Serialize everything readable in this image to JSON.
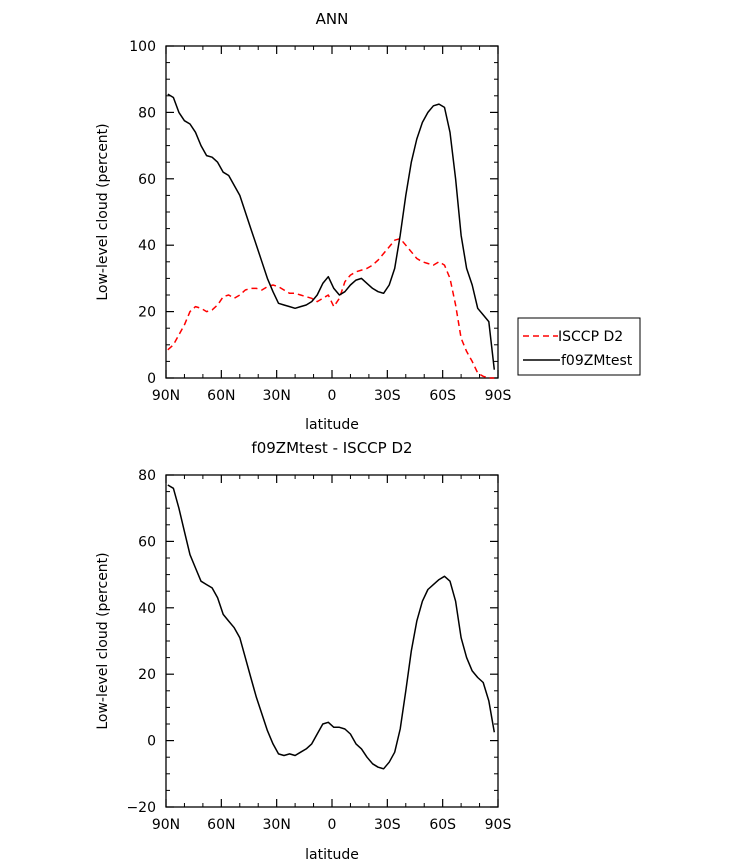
{
  "chart_data": [
    {
      "type": "line",
      "title": "ANN",
      "xlabel": "latitude",
      "ylabel": "Low-level cloud (percent)",
      "x_ticks": [
        "90N",
        "60N",
        "30N",
        "0",
        "30S",
        "60S",
        "90S"
      ],
      "x_tick_values": [
        -90,
        -60,
        -30,
        0,
        30,
        60,
        90
      ],
      "xlim": [
        -90,
        90
      ],
      "ylim": [
        0,
        100
      ],
      "y_ticks": [
        0,
        20,
        40,
        60,
        80,
        100
      ],
      "legend_position": "right",
      "series": [
        {
          "name": "ISCCP D2",
          "color": "#ff0000",
          "style": "dashed",
          "x": [
            -89,
            -86,
            -83,
            -80,
            -77,
            -74,
            -71,
            -68,
            -65,
            -62,
            -59,
            -56,
            -53,
            -50,
            -47,
            -44,
            -41,
            -38,
            -35,
            -32,
            -29,
            -26,
            -23,
            -20,
            -17,
            -14,
            -11,
            -8,
            -5,
            -2,
            1,
            4,
            7,
            10,
            13,
            16,
            19,
            22,
            25,
            28,
            31,
            34,
            37,
            40,
            43,
            46,
            49,
            52,
            55,
            58,
            61,
            64,
            67,
            70,
            73,
            76,
            79,
            82,
            85,
            88
          ],
          "y": [
            8.5,
            10,
            13,
            16,
            20,
            21.5,
            21,
            20,
            20.5,
            22,
            24.5,
            25,
            24,
            25,
            26.5,
            27,
            27,
            26.5,
            27.5,
            28,
            27.5,
            26.5,
            25.5,
            25.5,
            25,
            24.5,
            24,
            23,
            24,
            25,
            21.5,
            24,
            29,
            31,
            32,
            32.5,
            33,
            34,
            35.5,
            37.5,
            39.5,
            41.5,
            42,
            40,
            38,
            36,
            35,
            34.5,
            34,
            35,
            34,
            30,
            22,
            12,
            8,
            5,
            1.5,
            0.5,
            0,
            0
          ]
        },
        {
          "name": "f09ZMtest",
          "color": "#000000",
          "style": "solid",
          "x": [
            -89,
            -86,
            -83,
            -80,
            -77,
            -74,
            -71,
            -68,
            -65,
            -62,
            -59,
            -56,
            -53,
            -50,
            -47,
            -44,
            -41,
            -38,
            -35,
            -32,
            -29,
            -26,
            -23,
            -20,
            -17,
            -14,
            -11,
            -8,
            -5,
            -2,
            1,
            4,
            7,
            10,
            13,
            16,
            19,
            22,
            25,
            28,
            31,
            34,
            37,
            40,
            43,
            46,
            49,
            52,
            55,
            58,
            61,
            64,
            67,
            70,
            73,
            76,
            79,
            82,
            85,
            88
          ],
          "y": [
            85.5,
            84.5,
            80,
            77.5,
            76.5,
            74,
            70,
            67,
            66.5,
            65,
            62,
            61,
            58,
            55,
            50,
            45,
            40,
            35,
            30,
            26,
            22.5,
            22,
            21.5,
            21,
            21.5,
            22,
            23,
            25,
            28.5,
            30.5,
            27,
            25,
            26,
            28,
            29.5,
            30,
            28.5,
            27,
            26,
            25.5,
            28,
            33,
            43,
            55,
            65,
            72,
            77,
            80,
            82,
            82.5,
            81.5,
            74,
            60,
            43,
            33,
            28,
            21,
            19,
            17,
            2.5
          ]
        }
      ]
    },
    {
      "type": "line",
      "title": "f09ZMtest - ISCCP D2",
      "xlabel": "latitude",
      "ylabel": "Low-level cloud (percent)",
      "x_ticks": [
        "90N",
        "60N",
        "30N",
        "0",
        "30S",
        "60S",
        "90S"
      ],
      "x_tick_values": [
        -90,
        -60,
        -30,
        0,
        30,
        60,
        90
      ],
      "xlim": [
        -90,
        90
      ],
      "ylim": [
        -20,
        80
      ],
      "y_ticks": [
        -20,
        0,
        20,
        40,
        60,
        80
      ],
      "series": [
        {
          "color": "#000000",
          "style": "solid",
          "x": [
            -89,
            -86,
            -83,
            -80,
            -77,
            -74,
            -71,
            -68,
            -65,
            -62,
            -59,
            -56,
            -53,
            -50,
            -47,
            -44,
            -41,
            -38,
            -35,
            -32,
            -29,
            -26,
            -23,
            -20,
            -17,
            -14,
            -11,
            -8,
            -5,
            -2,
            1,
            4,
            7,
            10,
            13,
            16,
            19,
            22,
            25,
            28,
            31,
            34,
            37,
            40,
            43,
            46,
            49,
            52,
            55,
            58,
            61,
            64,
            67,
            70,
            73,
            76,
            79,
            82,
            85,
            88
          ],
          "y": [
            77,
            76,
            70,
            63,
            56,
            52,
            48,
            47,
            46,
            43,
            38,
            36,
            34,
            31,
            25,
            19,
            13,
            8,
            3,
            -1,
            -4,
            -4.5,
            -4,
            -4.5,
            -3.5,
            -2.5,
            -1,
            2,
            5,
            5.5,
            4,
            4,
            3.5,
            2,
            -1,
            -2.5,
            -5,
            -7,
            -8,
            -8.5,
            -6.5,
            -3.5,
            3.5,
            15,
            27,
            36,
            42,
            45.5,
            47,
            48.5,
            49.5,
            48,
            42,
            31,
            25,
            21,
            19,
            17.5,
            12,
            2.5
          ]
        }
      ]
    }
  ]
}
